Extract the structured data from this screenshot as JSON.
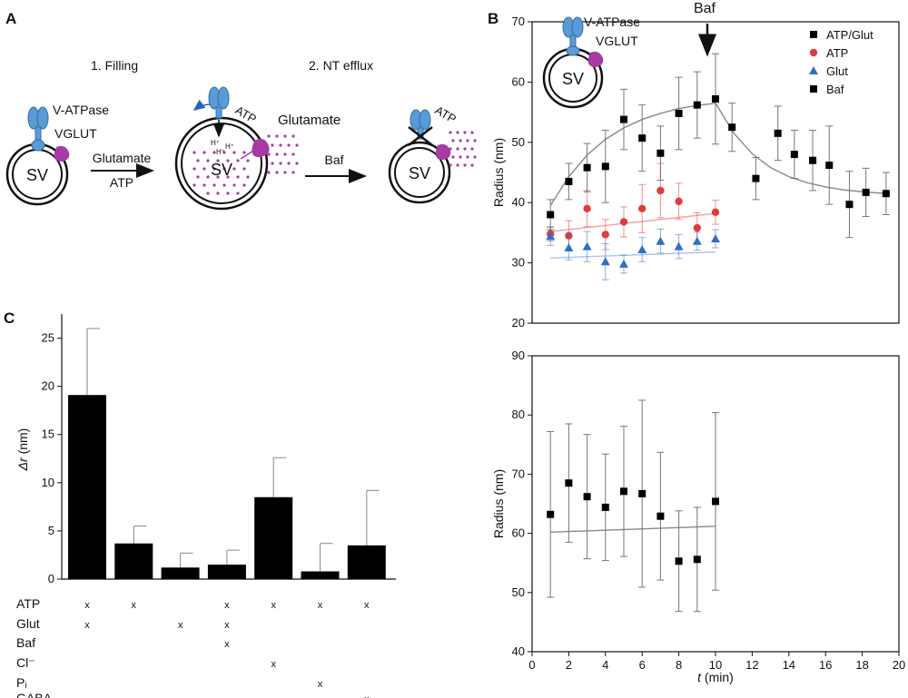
{
  "panel_labels": {
    "a": "A",
    "b": "B",
    "c": "C"
  },
  "schematic": {
    "step1": "1. Filling",
    "step2": "2. NT efflux",
    "sv": "SV",
    "vatpase": "V-ATPase",
    "vglut": "VGLUT",
    "arrow1_top": "Glutamate",
    "arrow1_bottom": "ATP",
    "atp": "ATP",
    "glutamate": "Glutamate",
    "baf": "Baf",
    "hplus": "H⁺"
  },
  "colors": {
    "vatpase": "#5b9bd5",
    "vglut": "#a63ba6",
    "atp_glut": "#000000",
    "atp": "#e03c3c",
    "glut": "#2f6fc4",
    "fit_gray": "#888888"
  },
  "chart_data": [
    {
      "id": "B-top",
      "type": "scatter",
      "title": "",
      "ylabel": "Radius (nm)",
      "xlim": [
        0,
        20
      ],
      "ylim": [
        20,
        70
      ],
      "yticks": [
        20,
        30,
        40,
        50,
        60,
        70
      ],
      "annotation": "Baf",
      "annotation_x": 9.3,
      "inset_labels": {
        "vatpase": "V-ATPase",
        "vglut": "VGLUT",
        "sv": "SV"
      },
      "legend": [
        {
          "name": "ATP/Glut",
          "marker": "square",
          "color": "#000000"
        },
        {
          "name": "ATP",
          "marker": "circle",
          "color": "#e03c3c"
        },
        {
          "name": "Glut",
          "marker": "triangle",
          "color": "#2f6fc4"
        },
        {
          "name": "Baf",
          "marker": "square",
          "color": "#000000"
        }
      ],
      "series": [
        {
          "name": "ATP/Glut",
          "marker": "square",
          "color": "#000000",
          "x": [
            1,
            2,
            3,
            4,
            5,
            6,
            7,
            8,
            9,
            10
          ],
          "y": [
            38,
            43.5,
            45.8,
            46,
            53.8,
            50.7,
            48.2,
            54.8,
            56.2,
            57.2
          ],
          "err": [
            2.5,
            3,
            4,
            6,
            5,
            5.5,
            4.5,
            6,
            5.5,
            7.5
          ]
        },
        {
          "name": "ATP",
          "marker": "circle",
          "color": "#e03c3c",
          "x": [
            1,
            2,
            3,
            4,
            5,
            6,
            7,
            8,
            9,
            10
          ],
          "y": [
            34.8,
            34.5,
            39,
            34.7,
            36.8,
            39,
            42,
            40.2,
            35.8,
            38.4
          ],
          "err": [
            1.2,
            2.5,
            3,
            2.5,
            2.5,
            4,
            4.5,
            3,
            2.5,
            2
          ]
        },
        {
          "name": "Glut",
          "marker": "triangle",
          "color": "#2f6fc4",
          "x": [
            1,
            2,
            3,
            4,
            5,
            6,
            7,
            8,
            9,
            10
          ],
          "y": [
            34.4,
            32.5,
            32.7,
            30.2,
            29.8,
            32.2,
            33.6,
            32.7,
            33.6,
            34
          ],
          "err": [
            1.5,
            2,
            2.5,
            3,
            1.5,
            2,
            2,
            2,
            1.5,
            1.5
          ]
        },
        {
          "name": "Baf",
          "marker": "square",
          "color": "#000000",
          "x": [
            10.9,
            12.2,
            13.4,
            14.3,
            15.3,
            16.2,
            17.3,
            18.2,
            19.3
          ],
          "y": [
            52.5,
            44,
            51.5,
            48,
            47,
            46.2,
            39.7,
            41.7,
            41.5
          ],
          "err": [
            4,
            3.5,
            4.5,
            4,
            5,
            6.5,
            5.5,
            4,
            3.5
          ]
        }
      ],
      "fits": [
        {
          "name": "ATP/Glut",
          "color": "#888888",
          "x": [
            1,
            2,
            3,
            4,
            5,
            6,
            7,
            8,
            9,
            10
          ],
          "y": [
            39.5,
            44.3,
            47.9,
            50.5,
            52.4,
            53.8,
            54.8,
            55.6,
            56.1,
            56.5
          ]
        },
        {
          "name": "Baf",
          "color": "#888888",
          "x": [
            10,
            11,
            12,
            13,
            14,
            15,
            16,
            17,
            18,
            19.3
          ],
          "y": [
            56.5,
            51.5,
            48.1,
            45.8,
            44.3,
            43.3,
            42.6,
            42.1,
            41.8,
            41.5
          ]
        },
        {
          "name": "ATP",
          "color": "#f2a0a0",
          "x": [
            1,
            10
          ],
          "y": [
            35.2,
            38.2
          ]
        },
        {
          "name": "Glut",
          "color": "#a9c3ea",
          "x": [
            1,
            10
          ],
          "y": [
            30.8,
            31.8
          ]
        }
      ]
    },
    {
      "id": "B-bottom",
      "type": "scatter",
      "xlabel_italic": "t",
      "xlabel_rest": " (min)",
      "ylabel": "Radius (nm)",
      "xlim": [
        0,
        20
      ],
      "ylim": [
        40,
        90
      ],
      "xticks": [
        0,
        2,
        4,
        6,
        8,
        10,
        12,
        14,
        16,
        18,
        20
      ],
      "yticks": [
        40,
        50,
        60,
        70,
        80,
        90
      ],
      "series": [
        {
          "name": "Radius",
          "marker": "square",
          "color": "#000000",
          "x": [
            1,
            2,
            3,
            4,
            5,
            6,
            7,
            8,
            9,
            10
          ],
          "y": [
            63.2,
            68.5,
            66.2,
            64.4,
            67.1,
            66.7,
            62.9,
            55.3,
            55.6,
            65.4
          ],
          "err": [
            14,
            10,
            10.5,
            9,
            11,
            15.8,
            10.8,
            8.5,
            8.8,
            15
          ]
        }
      ],
      "fits": [
        {
          "name": "linear",
          "color": "#888888",
          "x": [
            1,
            10
          ],
          "y": [
            60.2,
            61.2
          ]
        }
      ]
    },
    {
      "id": "C",
      "type": "bar",
      "ylabel_italic": "Δr",
      "ylabel_rest": " (nm)",
      "ylim": [
        0,
        27.5
      ],
      "yticks": [
        0,
        5,
        10,
        15,
        20,
        25
      ],
      "values": [
        19.1,
        3.7,
        1.2,
        1.5,
        8.5,
        0.8,
        3.5
      ],
      "err_high": [
        26,
        5.5,
        2.7,
        3,
        12.6,
        3.7,
        9.2
      ],
      "condition_rows": [
        "ATP",
        "Glut",
        "Baf",
        "Cl⁻",
        "Pᵢ",
        "GABA"
      ],
      "mark": "x",
      "conditions": [
        [
          true,
          true,
          false,
          false,
          false,
          false
        ],
        [
          true,
          false,
          false,
          false,
          false,
          false
        ],
        [
          false,
          true,
          false,
          false,
          false,
          false
        ],
        [
          true,
          true,
          true,
          false,
          false,
          false
        ],
        [
          true,
          false,
          false,
          true,
          false,
          false
        ],
        [
          true,
          false,
          false,
          false,
          true,
          false
        ],
        [
          true,
          false,
          false,
          false,
          false,
          true
        ]
      ]
    }
  ]
}
